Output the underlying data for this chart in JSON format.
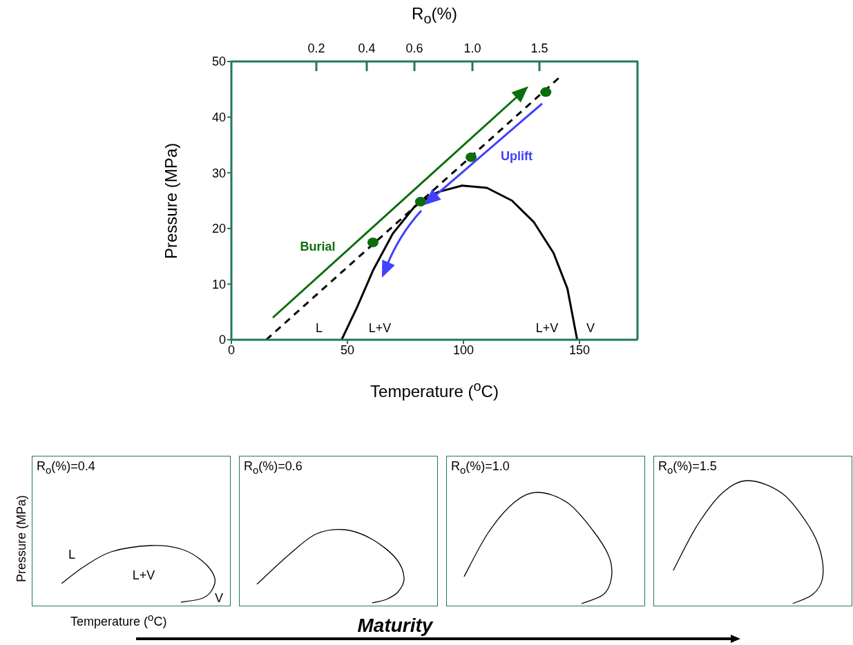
{
  "chart_data": [
    {
      "type": "line",
      "xlabel": "Temperature ($^{o}$C)",
      "ylabel": "Pressure (MPa)",
      "x2label": "R$_{o}$(%)",
      "xlim": [
        0,
        175
      ],
      "xticks": [
        0,
        50,
        100,
        150
      ],
      "ylim": [
        0,
        50
      ],
      "yticks": [
        0,
        10,
        20,
        30,
        40,
        50
      ],
      "series": [
        {
          "type": "line",
          "line_style": "solid",
          "color": "#000000",
          "x": [
            47.5,
            54,
            61.2,
            69.6,
            79.1,
            88.7,
            99.4,
            110.1,
            120.9,
            130.4,
            138.8,
            144.8,
            149
          ],
          "values": [
            0,
            5.7,
            12.6,
            19.1,
            24,
            26.5,
            27.7,
            27.3,
            25,
            21.1,
            15.6,
            9.2,
            0
          ]
        },
        {
          "type": "line",
          "line_style": "dashed",
          "color": "#000000",
          "x": [
            15,
            141
          ],
          "values": [
            0,
            47
          ]
        },
        {
          "type": "scatter",
          "marker": "circle",
          "color": "#0b6e0b",
          "x": [
            61,
            81.5,
            103.3,
            135.5
          ],
          "values": [
            17.5,
            24.8,
            32.8,
            44.5
          ]
        }
      ],
      "annotations": [
        "L",
        "L+V",
        "L+V",
        "V",
        "Burial",
        "Uplift",
        "0.2",
        "0.4",
        "0.6",
        "1.0",
        "1.5"
      ]
    },
    {
      "type": "other",
      "title": "R$_{o}$(%)=0.4",
      "xlabel": "Temperature ($^{o}$C)",
      "ylabel": "Pressure (MPa)",
      "annotations": [
        "L",
        "L+V",
        "V"
      ]
    },
    {
      "type": "other",
      "title": "R$_{o}$(%)=0.6",
      "annotations": [
        "Maturity"
      ]
    },
    {
      "type": "other",
      "title": "R$_{o}$(%)=1.0"
    },
    {
      "type": "other",
      "title": "R$_{o}$(%)=1.5"
    }
  ]
}
